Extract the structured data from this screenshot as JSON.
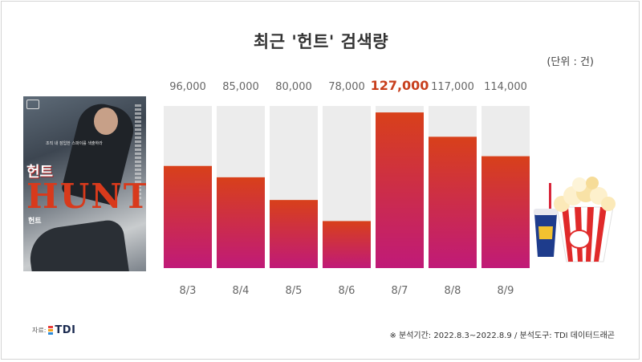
{
  "title": "최근 '헌트' 검색량",
  "unit_label": "(단위 : 건)",
  "poster": {
    "kr_title": "헌트",
    "en_title": "HUNT",
    "sub_kr": "헌트",
    "tagline": "조직 내 잠입한 스파이를 색출하라"
  },
  "chart_data": {
    "type": "bar",
    "categories": [
      "8/3",
      "8/4",
      "8/5",
      "8/6",
      "8/7",
      "8/8",
      "8/9"
    ],
    "values": [
      96000,
      85000,
      80000,
      78000,
      127000,
      117000,
      114000
    ],
    "value_labels": [
      "96,000",
      "85,000",
      "80,000",
      "78,000",
      "127,000",
      "117,000",
      "114,000"
    ],
    "highlight_index": 4,
    "title": "최근 '헌트' 검색량",
    "ylabel": "",
    "fill_fractions": [
      0.63,
      0.56,
      0.42,
      0.29,
      0.96,
      0.81,
      0.69
    ],
    "colors": {
      "bar_top": "#d8401a",
      "bar_bottom": "#c01a78",
      "track": "#ececec",
      "label": "#666666",
      "highlight": "#c8401e"
    },
    "grid": false,
    "legend": "none"
  },
  "footer": {
    "source_label": "자료:",
    "logo_text": "TDI",
    "analysis_note": "※ 분석기간: 2022.8.3~2022.8.9 / 분석도구: TDI 데이터드래곤"
  },
  "icons": [
    "popcorn-icon",
    "soda-cup-icon",
    "tdi-logo"
  ]
}
